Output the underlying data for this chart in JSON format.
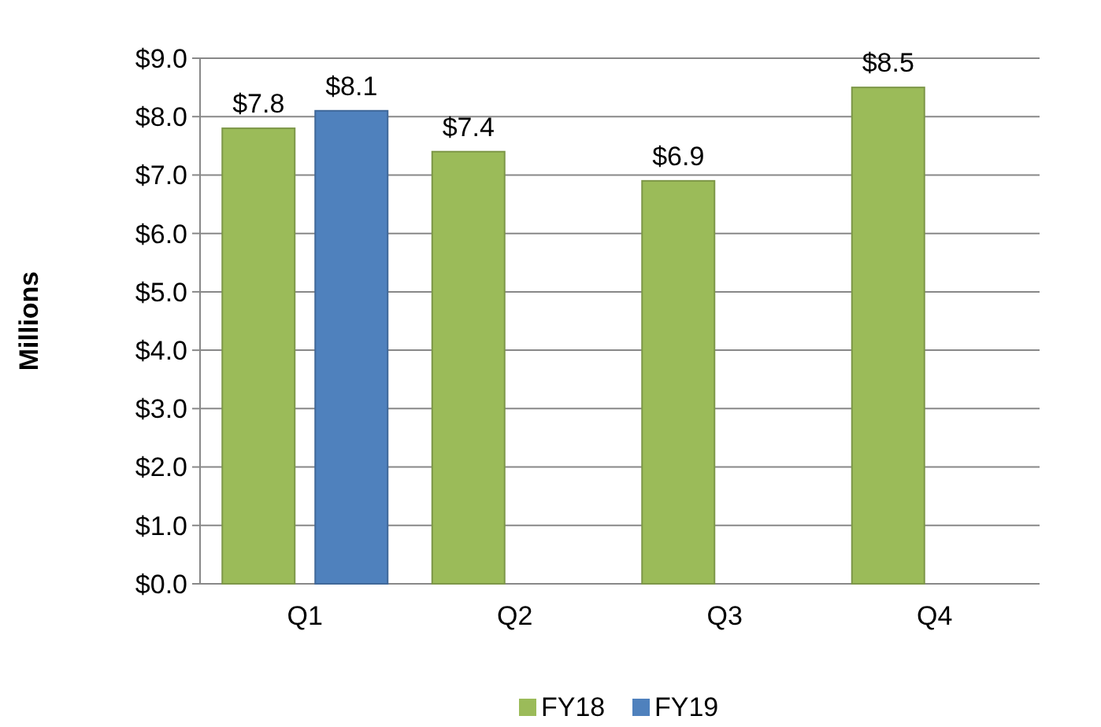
{
  "chart_data": {
    "type": "bar",
    "ylabel": "Millions",
    "categories": [
      "Q1",
      "Q2",
      "Q3",
      "Q4"
    ],
    "series": [
      {
        "name": "FY18",
        "color": "#9bbb59",
        "values": [
          7.8,
          7.4,
          6.9,
          8.5
        ],
        "value_labels": [
          "$7.8",
          "$7.4",
          "$6.9",
          "$8.5"
        ]
      },
      {
        "name": "FY19",
        "color": "#4f81bd",
        "values": [
          8.1,
          null,
          null,
          null
        ],
        "value_labels": [
          "$8.1",
          null,
          null,
          null
        ]
      }
    ],
    "ylim": [
      0,
      9
    ],
    "yticks": [
      {
        "value": 0,
        "label": "$0.0"
      },
      {
        "value": 1,
        "label": "$1.0"
      },
      {
        "value": 2,
        "label": "$2.0"
      },
      {
        "value": 3,
        "label": "$3.0"
      },
      {
        "value": 4,
        "label": "$4.0"
      },
      {
        "value": 5,
        "label": "$5.0"
      },
      {
        "value": 6,
        "label": "$6.0"
      },
      {
        "value": 7,
        "label": "$7.0"
      },
      {
        "value": 8,
        "label": "$8.0"
      },
      {
        "value": 9,
        "label": "$9.0"
      }
    ],
    "grid": "y",
    "legend": "bottom"
  }
}
